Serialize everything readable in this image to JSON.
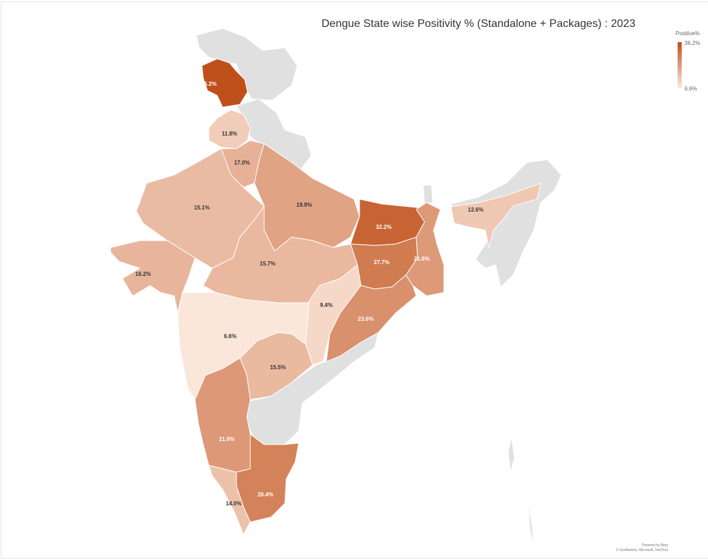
{
  "title": "Dengue State wise Positivity % (Standalone + Packages) : 2023",
  "legend": {
    "title": "Positive%",
    "max": "36.2%",
    "min": "6.6%",
    "color_max": "#c0501a",
    "color_min": "#fbe6da",
    "no_data_color": "#e0e0e0"
  },
  "credit": {
    "line1": "Powered by Bing",
    "line2": "© GeoNames, Microsoft, TomTom"
  },
  "states": [
    {
      "id": "jk",
      "value": 36.2,
      "label": "36.2%"
    },
    {
      "id": "pb",
      "value": 11.8,
      "label": "11.8%"
    },
    {
      "id": "hr",
      "value": 17.0,
      "label": "17.0%"
    },
    {
      "id": "rj",
      "value": 15.1,
      "label": "15.1%"
    },
    {
      "id": "up",
      "value": 19.9,
      "label": "19.9%"
    },
    {
      "id": "br",
      "value": 32.2,
      "label": "32.2%"
    },
    {
      "id": "jh",
      "value": 27.7,
      "label": "27.7%"
    },
    {
      "id": "wb",
      "value": 21.6,
      "label": "21.6%"
    },
    {
      "id": "as",
      "value": 12.6,
      "label": "12.6%"
    },
    {
      "id": "gj",
      "value": 16.2,
      "label": "16.2%"
    },
    {
      "id": "mp",
      "value": 15.7,
      "label": "15.7%"
    },
    {
      "id": "cg",
      "value": 9.4,
      "label": "9.4%"
    },
    {
      "id": "od",
      "value": 23.6,
      "label": "23.6%"
    },
    {
      "id": "mh",
      "value": 6.6,
      "label": "6.6%"
    },
    {
      "id": "tg",
      "value": 15.5,
      "label": "15.5%"
    },
    {
      "id": "ka",
      "value": 21.9,
      "label": "21.9%"
    },
    {
      "id": "tn",
      "value": 26.4,
      "label": "26.4%"
    },
    {
      "id": "kl",
      "value": 14.0,
      "label": "14.0%"
    }
  ]
}
